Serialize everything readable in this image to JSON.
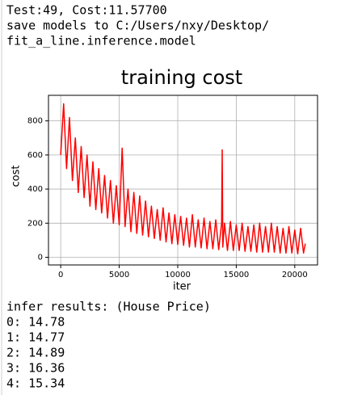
{
  "console_top": [
    "Test:49, Cost:11.57700",
    "save models to C:/Users/nxy/Desktop/",
    "fit_a_line.inference.model"
  ],
  "chart_data": {
    "type": "line",
    "title": "training cost",
    "x_label": "iter",
    "y_label": "cost",
    "x": [
      0,
      250,
      500,
      750,
      1000,
      1250,
      1500,
      1750,
      2000,
      2250,
      2500,
      2750,
      3000,
      3250,
      3500,
      3750,
      4000,
      4250,
      4500,
      4750,
      5000,
      5250,
      5500,
      5750,
      6000,
      6250,
      6500,
      6750,
      7000,
      7250,
      7500,
      7750,
      8000,
      8250,
      8500,
      8750,
      9000,
      9250,
      9500,
      9750,
      10000,
      10250,
      10500,
      10750,
      11000,
      11250,
      11500,
      11750,
      12000,
      12250,
      12500,
      12750,
      13000,
      13250,
      13500,
      13750,
      13800,
      13850,
      14000,
      14250,
      14500,
      14750,
      15000,
      15250,
      15500,
      15750,
      16000,
      16250,
      16500,
      16750,
      17000,
      17250,
      17500,
      17750,
      18000,
      18250,
      18500,
      18750,
      19000,
      19250,
      19500,
      19750,
      20000,
      20250,
      20500,
      20750,
      20900
    ],
    "series": [
      {
        "color": "#ff0000",
        "values": [
          600,
          900,
          520,
          820,
          450,
          700,
          380,
          650,
          350,
          600,
          300,
          560,
          280,
          520,
          260,
          480,
          230,
          450,
          200,
          420,
          190,
          640,
          180,
          400,
          150,
          380,
          140,
          360,
          130,
          330,
          120,
          300,
          110,
          280,
          100,
          290,
          90,
          260,
          80,
          250,
          75,
          240,
          70,
          230,
          60,
          250,
          60,
          220,
          55,
          230,
          50,
          210,
          50,
          220,
          45,
          200,
          630,
          60,
          200,
          40,
          210,
          40,
          190,
          40,
          200,
          35,
          180,
          35,
          190,
          30,
          200,
          30,
          180,
          30,
          200,
          30,
          180,
          25,
          170,
          25,
          180,
          25,
          160,
          20,
          170,
          25,
          80
        ]
      }
    ],
    "xlim": [
      -1045,
      21945
    ],
    "ylim": [
      -45,
      950
    ],
    "xticks": [
      0,
      5000,
      10000,
      15000,
      20000
    ],
    "yticks": [
      0,
      200,
      400,
      600,
      800
    ],
    "grid": true
  },
  "console_bottom": {
    "heading": "infer results: (House Price)",
    "results": [
      "0: 14.78",
      "1: 14.77",
      "2: 14.89",
      "3: 16.36",
      "4: 15.34"
    ]
  }
}
